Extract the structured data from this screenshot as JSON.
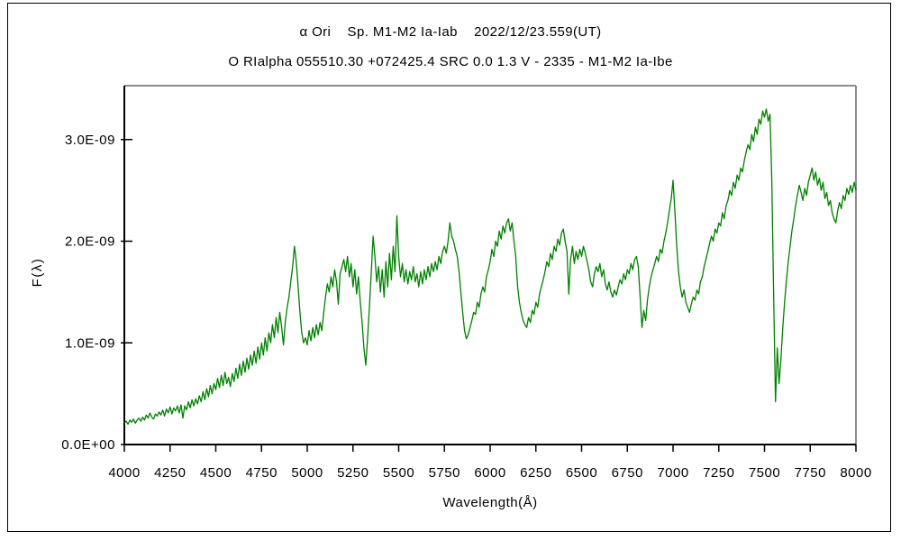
{
  "figure": {
    "title_line1": "α Ori    Sp. M1-M2 Ia-Iab    2022/12/23.559(UT)",
    "title_line2": "O RIalpha 055510.30 +072425.4 SRC 0.0 1.3 V - 2335 - M1-M2 Ia-Ibe"
  },
  "chart_data": {
    "type": "line",
    "title": "α Ori    Sp. M1-M2 Ia-Iab    2022/12/23.559(UT)",
    "subtitle": "O RIalpha 055510.30 +072425.4 SRC 0.0 1.3 V - 2335 - M1-M2 Ia-Ibe",
    "xlabel": "Wavelength(Å)",
    "ylabel": "F(λ)",
    "xlim": [
      4000,
      8000
    ],
    "ylim": [
      0,
      3.53e-09
    ],
    "x_ticks": [
      4000,
      4250,
      4500,
      4750,
      5000,
      5250,
      5500,
      5750,
      6000,
      6250,
      6500,
      6750,
      7000,
      7250,
      7500,
      7750,
      8000
    ],
    "x_tick_labels": [
      "4000",
      "4250",
      "4500",
      "4750",
      "5000",
      "5250",
      "5500",
      "5750",
      "6000",
      "6250",
      "6500",
      "6750",
      "7000",
      "7250",
      "7500",
      "7750",
      "8000"
    ],
    "y_ticks": [
      0,
      1e-09,
      2e-09,
      3e-09
    ],
    "y_tick_labels": [
      "0.0E+00",
      "1.0E-09",
      "2.0E-09",
      "3.0E-09"
    ],
    "grid": false,
    "legend": "none",
    "line_color": "#008000",
    "axis_color_left_bottom": "#000000",
    "axis_color_top_right": "#8c8c8c",
    "series": [
      {
        "name": "alpha-ori-spectrum",
        "wavelength_start": 4000,
        "wavelength_step": 10,
        "flux_unit": "1E-09",
        "flux": [
          0.21,
          0.23,
          0.2,
          0.24,
          0.22,
          0.25,
          0.21,
          0.24,
          0.26,
          0.23,
          0.27,
          0.24,
          0.29,
          0.26,
          0.31,
          0.27,
          0.25,
          0.3,
          0.28,
          0.32,
          0.29,
          0.34,
          0.28,
          0.35,
          0.31,
          0.37,
          0.3,
          0.36,
          0.33,
          0.38,
          0.31,
          0.39,
          0.26,
          0.38,
          0.34,
          0.42,
          0.36,
          0.44,
          0.38,
          0.45,
          0.4,
          0.48,
          0.42,
          0.52,
          0.44,
          0.55,
          0.47,
          0.58,
          0.5,
          0.6,
          0.54,
          0.65,
          0.56,
          0.68,
          0.58,
          0.71,
          0.6,
          0.66,
          0.57,
          0.7,
          0.62,
          0.75,
          0.65,
          0.79,
          0.68,
          0.82,
          0.71,
          0.85,
          0.74,
          0.88,
          0.78,
          0.92,
          0.8,
          0.96,
          0.84,
          1.0,
          0.88,
          1.05,
          0.92,
          1.1,
          1.0,
          1.18,
          1.05,
          1.25,
          1.1,
          1.3,
          1.15,
          0.98,
          1.2,
          1.35,
          1.45,
          1.6,
          1.75,
          1.95,
          1.8,
          1.55,
          1.3,
          1.1,
          1.0,
          1.05,
          0.98,
          1.12,
          1.02,
          1.15,
          1.05,
          1.18,
          1.08,
          1.2,
          1.12,
          1.3,
          1.45,
          1.58,
          1.5,
          1.65,
          1.55,
          1.72,
          1.6,
          1.38,
          1.68,
          1.75,
          1.82,
          1.7,
          1.85,
          1.65,
          1.78,
          1.55,
          1.72,
          1.48,
          1.65,
          1.4,
          1.2,
          0.95,
          0.78,
          1.05,
          1.35,
          1.7,
          2.05,
          1.85,
          1.6,
          1.75,
          1.5,
          1.72,
          1.45,
          1.8,
          1.55,
          1.88,
          1.62,
          1.95,
          1.7,
          2.25,
          1.85,
          1.65,
          1.78,
          1.6,
          1.72,
          1.58,
          1.7,
          1.62,
          1.75,
          1.6,
          1.68,
          1.55,
          1.7,
          1.58,
          1.72,
          1.62,
          1.75,
          1.65,
          1.78,
          1.7,
          1.8,
          1.72,
          1.85,
          1.78,
          1.9,
          1.95,
          1.88,
          2.0,
          2.18,
          2.05,
          2.0,
          1.92,
          1.85,
          1.7,
          1.5,
          1.3,
          1.12,
          1.04,
          1.08,
          1.15,
          1.22,
          1.3,
          1.28,
          1.4,
          1.35,
          1.48,
          1.55,
          1.5,
          1.65,
          1.72,
          1.8,
          1.92,
          1.85,
          2.0,
          1.95,
          2.1,
          2.02,
          2.15,
          2.08,
          2.18,
          2.22,
          2.1,
          2.18,
          2.0,
          1.85,
          1.55,
          1.4,
          1.3,
          1.22,
          1.18,
          1.15,
          1.25,
          1.2,
          1.32,
          1.28,
          1.4,
          1.35,
          1.48,
          1.55,
          1.62,
          1.7,
          1.8,
          1.75,
          1.88,
          1.82,
          1.95,
          1.9,
          2.02,
          1.96,
          2.08,
          2.12,
          2.0,
          1.9,
          1.48,
          1.82,
          1.95,
          1.78,
          1.9,
          1.82,
          1.92,
          1.85,
          1.95,
          1.88,
          1.8,
          1.72,
          1.6,
          1.55,
          1.68,
          1.75,
          1.7,
          1.78,
          1.65,
          1.72,
          1.58,
          1.52,
          1.6,
          1.5,
          1.45,
          1.52,
          1.47,
          1.55,
          1.62,
          1.58,
          1.68,
          1.62,
          1.72,
          1.68,
          1.78,
          1.72,
          1.82,
          1.85,
          1.75,
          1.45,
          1.15,
          1.32,
          1.22,
          1.42,
          1.55,
          1.65,
          1.72,
          1.78,
          1.85,
          1.8,
          1.92,
          1.88,
          2.0,
          2.08,
          2.18,
          2.3,
          2.42,
          2.6,
          2.3,
          1.95,
          1.7,
          1.55,
          1.45,
          1.52,
          1.4,
          1.35,
          1.3,
          1.38,
          1.45,
          1.42,
          1.52,
          1.48,
          1.6,
          1.65,
          1.75,
          1.82,
          1.9,
          1.98,
          2.05,
          2.0,
          2.12,
          2.08,
          2.18,
          2.15,
          2.28,
          2.22,
          2.35,
          2.4,
          2.5,
          2.45,
          2.58,
          2.52,
          2.65,
          2.6,
          2.72,
          2.68,
          2.8,
          2.88,
          2.95,
          2.9,
          3.05,
          2.98,
          3.12,
          3.05,
          3.2,
          3.15,
          3.28,
          3.22,
          3.3,
          3.18,
          3.25,
          2.6,
          1.5,
          0.42,
          0.95,
          0.6,
          0.85,
          1.15,
          1.4,
          1.62,
          1.8,
          1.95,
          2.1,
          2.22,
          2.35,
          2.45,
          2.55,
          2.48,
          2.4,
          2.52,
          2.45,
          2.58,
          2.65,
          2.72,
          2.6,
          2.68,
          2.55,
          2.62,
          2.5,
          2.58,
          2.42,
          2.48,
          2.35,
          2.4,
          2.28,
          2.22,
          2.18,
          2.3,
          2.38,
          2.32,
          2.45,
          2.4,
          2.52,
          2.46,
          2.55,
          2.48,
          2.58,
          2.5
        ]
      }
    ]
  }
}
